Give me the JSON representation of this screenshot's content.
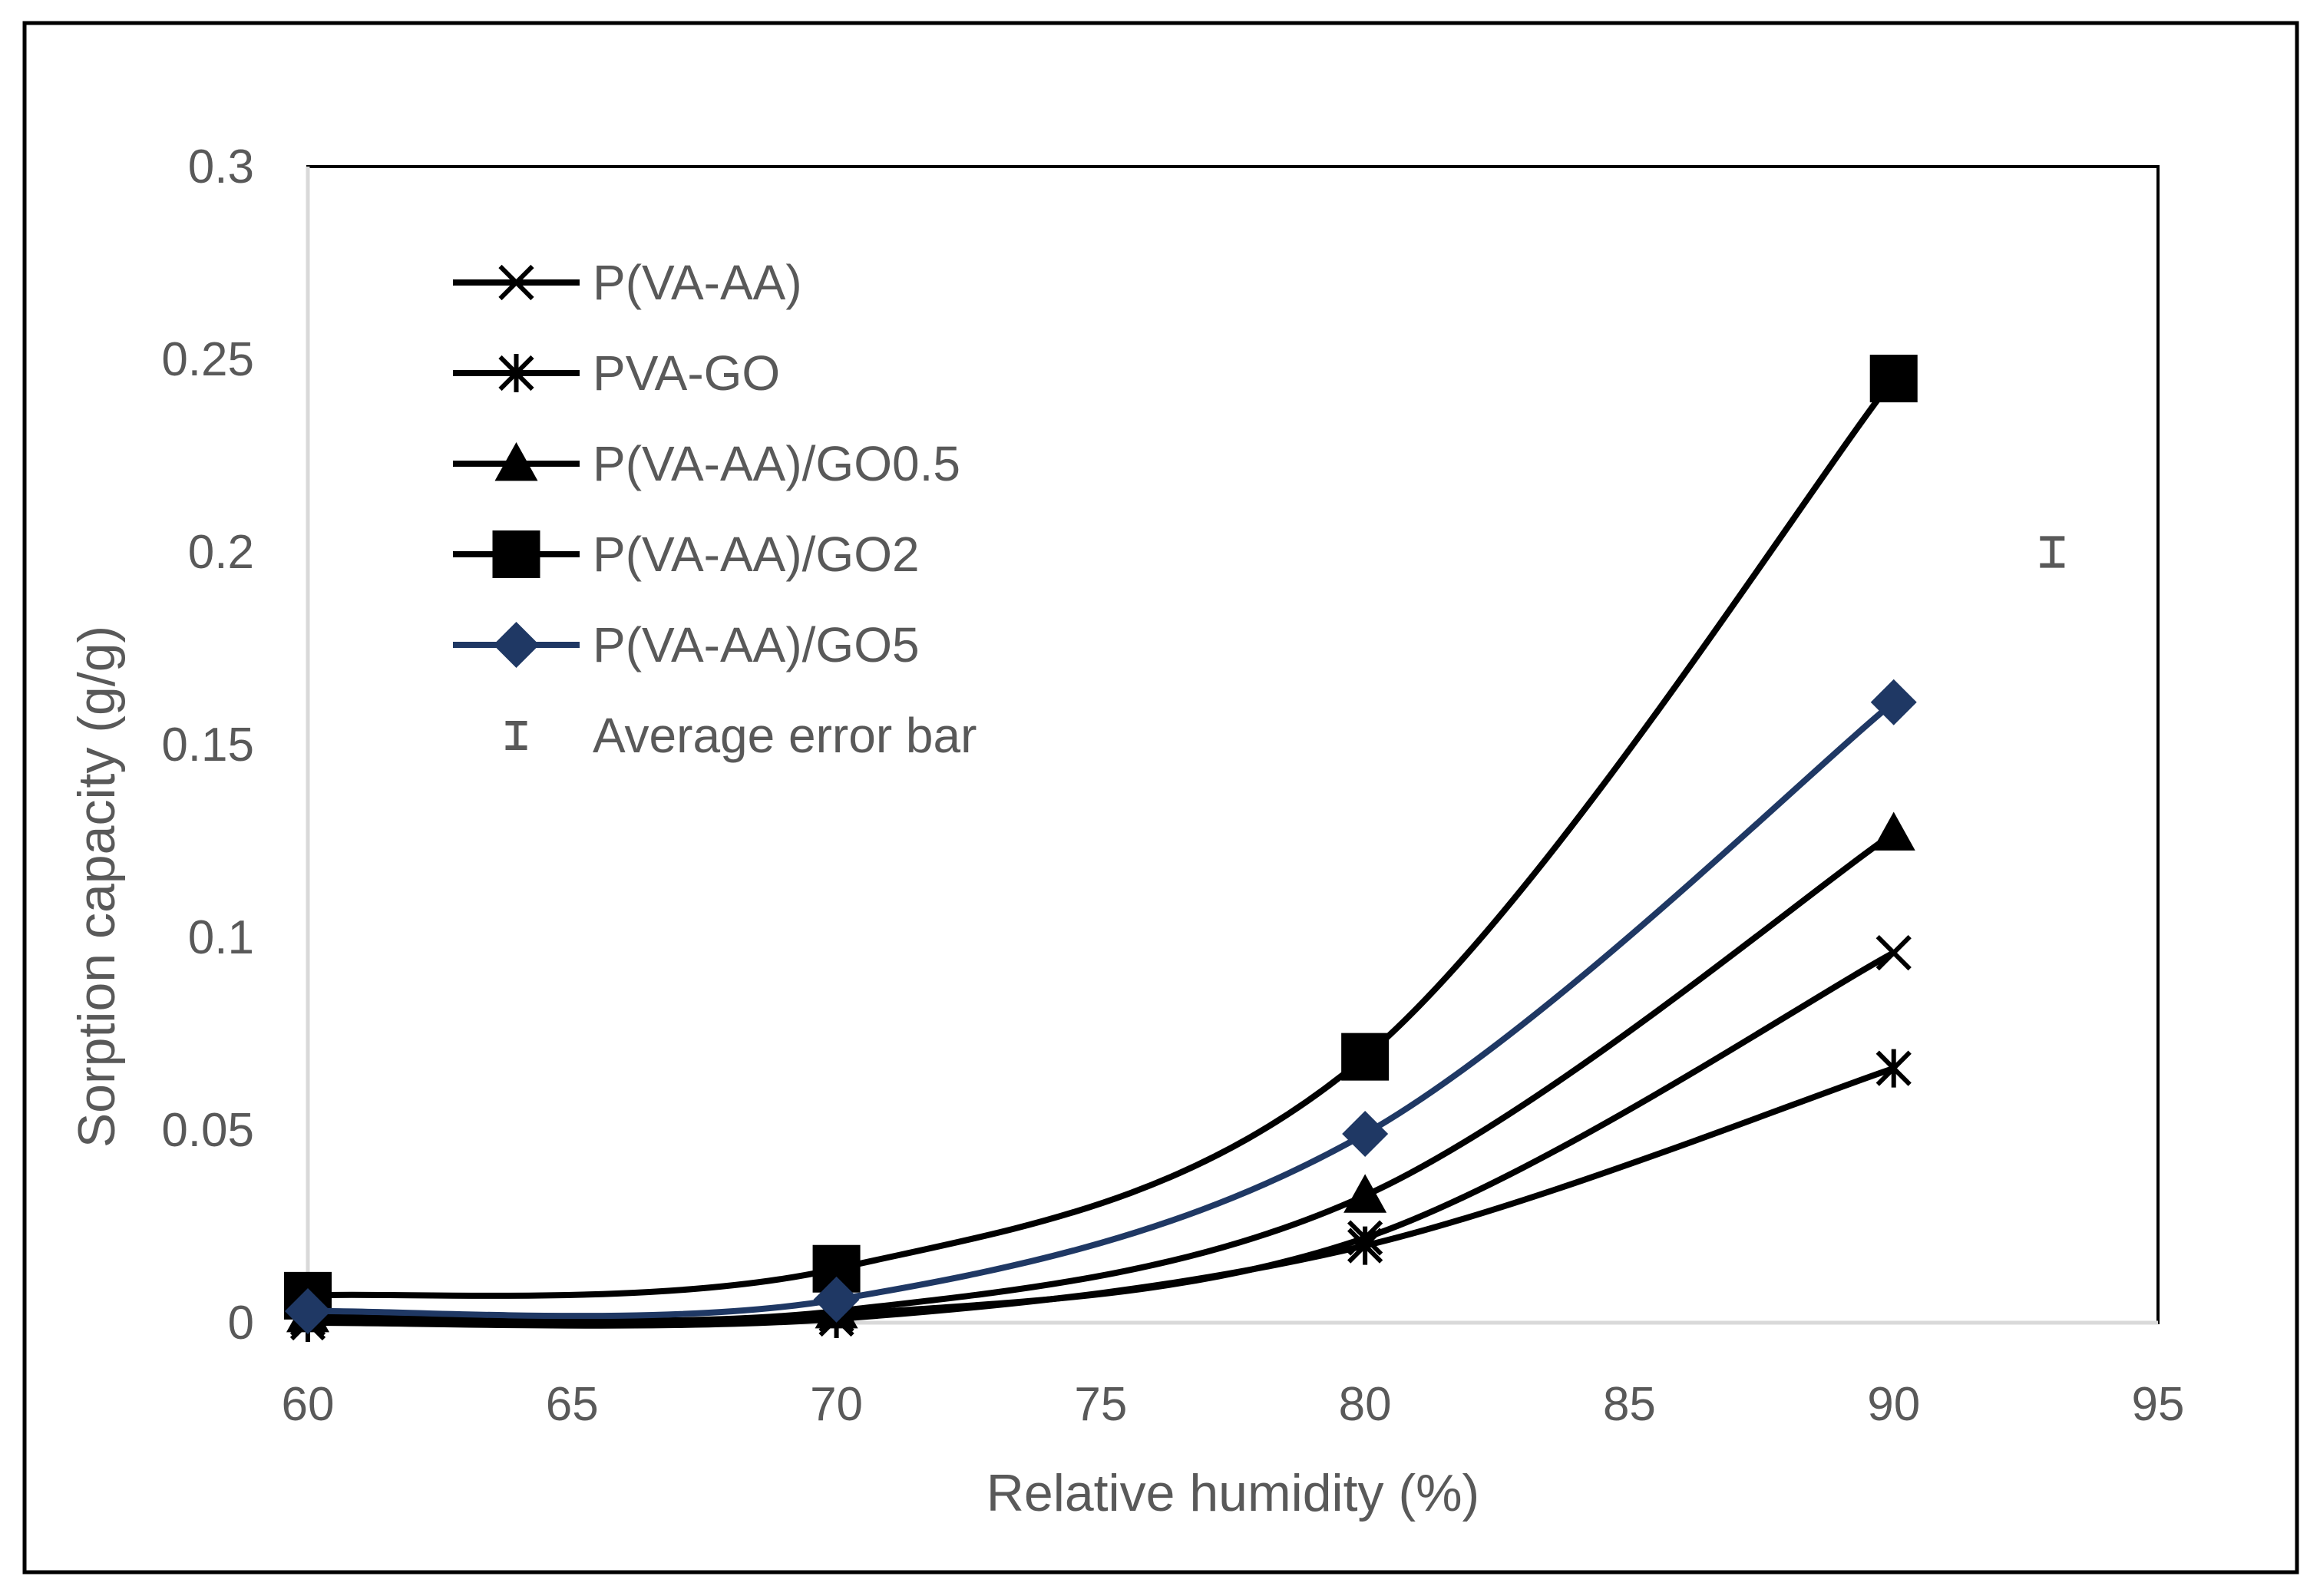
{
  "chart_data": {
    "type": "line",
    "title": "",
    "xlabel": "Relative humidity (%)",
    "ylabel": "Sorption capacity (g/g)",
    "xlim": [
      60,
      95
    ],
    "ylim": [
      0,
      0.3
    ],
    "xticks": [
      60,
      65,
      70,
      75,
      80,
      85,
      90,
      95
    ],
    "yticks": [
      0,
      0.05,
      0.1,
      0.15,
      0.2,
      0.25,
      0.3
    ],
    "xtick_labels": [
      "60",
      "65",
      "70",
      "75",
      "80",
      "85",
      "90",
      "95"
    ],
    "ytick_labels": [
      "0",
      "0.05",
      "0.1",
      "0.15",
      "0.2",
      "0.25",
      "0.3"
    ],
    "grid": false,
    "legend_position": "top-left",
    "x": [
      60,
      70,
      80,
      90
    ],
    "series": [
      {
        "name": "P(VA-AA)",
        "marker": "x",
        "color": "#000000",
        "values": [
          0.001,
          0.002,
          0.022,
          0.096
        ]
      },
      {
        "name": "PVA-GO",
        "marker": "asterisk",
        "color": "#000000",
        "values": [
          0.0,
          0.001,
          0.02,
          0.066
        ]
      },
      {
        "name": "P(VA-AA)/GO0.5",
        "marker": "triangle",
        "color": "#000000",
        "values": [
          0.002,
          0.003,
          0.033,
          0.127
        ]
      },
      {
        "name": "P(VA-AA)/GO2",
        "marker": "square",
        "color": "#000000",
        "values": [
          0.007,
          0.014,
          0.069,
          0.245
        ]
      },
      {
        "name": "P(VA-AA)/GO5",
        "marker": "diamond",
        "color": "#1f3864",
        "values": [
          0.003,
          0.006,
          0.049,
          0.161
        ]
      }
    ],
    "error_bar": {
      "name": "Average error bar",
      "x": 93,
      "y": 0.2,
      "half_height": 0.0035,
      "color": "#595959"
    },
    "frame_color": "#000000",
    "axis_color": "#d9d9d9",
    "text_color": "#595959"
  }
}
